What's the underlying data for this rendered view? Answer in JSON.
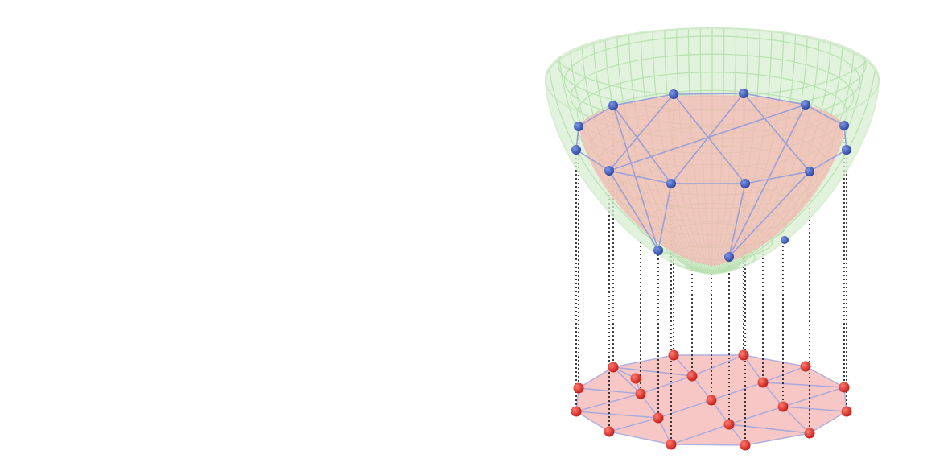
{
  "figure": {
    "surface": {
      "shape": "paraboloid",
      "fill_color": "#d7efd2",
      "grid_color": "#b9e0b0",
      "outline_color": "#cfe9c8"
    },
    "lifted_mesh": {
      "fill_color": "#f4b8b2",
      "edge_color": "#9a9fd8",
      "vertex_color": "#3f5bb5",
      "vertex_count": 14
    },
    "base_mesh": {
      "shape": "dodecagon",
      "fill_color": "#f7c2bf",
      "edge_color": "#a7a8de",
      "vertex_color": "#e0342c",
      "vertex_count": 20
    },
    "projection_lines": {
      "style": "dotted",
      "color": "#111111",
      "count": 16
    }
  }
}
